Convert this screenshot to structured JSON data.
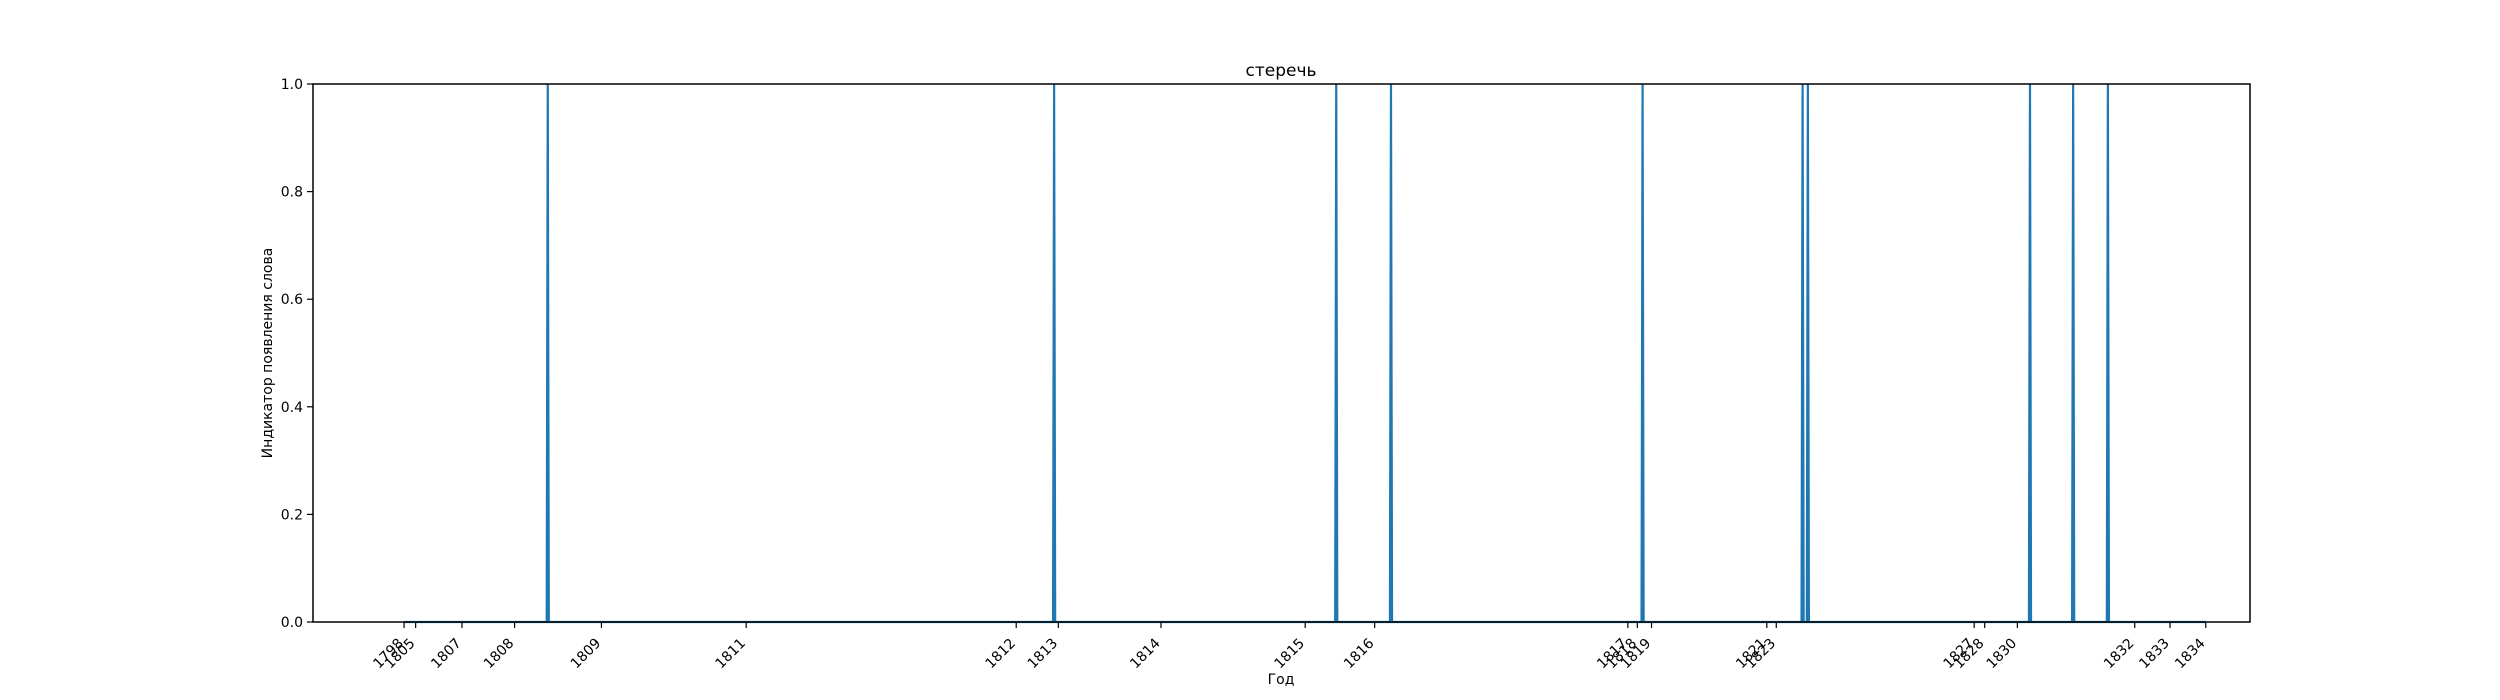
{
  "chart_data": {
    "type": "line",
    "title": "стеречь",
    "xlabel": "Год",
    "ylabel": "Индикатор появления слова",
    "xlim": [
      1798.6,
      1835.4
    ],
    "ylim": [
      0.0,
      1.0
    ],
    "x_ticks": [
      {
        "value": 1800.33,
        "label": "1798"
      },
      {
        "value": 1800.55,
        "label": "1805"
      },
      {
        "value": 1801.43,
        "label": "1807"
      },
      {
        "value": 1802.43,
        "label": "1808"
      },
      {
        "value": 1804.08,
        "label": "1809"
      },
      {
        "value": 1806.83,
        "label": "1811"
      },
      {
        "value": 1811.96,
        "label": "1812"
      },
      {
        "value": 1812.76,
        "label": "1813"
      },
      {
        "value": 1814.71,
        "label": "1814"
      },
      {
        "value": 1817.45,
        "label": "1815"
      },
      {
        "value": 1818.77,
        "label": "1816"
      },
      {
        "value": 1823.58,
        "label": "1817"
      },
      {
        "value": 1823.76,
        "label": "1818"
      },
      {
        "value": 1824.03,
        "label": "1819"
      },
      {
        "value": 1826.22,
        "label": "1821"
      },
      {
        "value": 1826.4,
        "label": "1823"
      },
      {
        "value": 1830.16,
        "label": "1827"
      },
      {
        "value": 1830.36,
        "label": "1828"
      },
      {
        "value": 1830.98,
        "label": "1830"
      },
      {
        "value": 1833.21,
        "label": "1832"
      },
      {
        "value": 1833.88,
        "label": "1833"
      },
      {
        "value": 1834.56,
        "label": "1834"
      }
    ],
    "y_ticks": [
      0.0,
      0.2,
      0.4,
      0.6,
      0.8,
      1.0
    ],
    "y_tick_labels": [
      "0.0",
      "0.2",
      "0.4",
      "0.6",
      "0.8",
      "1.0"
    ],
    "series": [
      {
        "color": "#1f77b4",
        "x": [
          1800.33,
          1803.04,
          1803.06,
          1803.08,
          1812.66,
          1812.68,
          1812.7,
          1818.02,
          1818.04,
          1818.06,
          1819.06,
          1819.08,
          1819.1,
          1823.84,
          1823.86,
          1823.88,
          1826.88,
          1826.9,
          1826.92,
          1826.98,
          1827.0,
          1827.02,
          1831.2,
          1831.22,
          1831.24,
          1832.02,
          1832.04,
          1832.06,
          1832.68,
          1832.7,
          1832.72,
          1834.56
        ],
        "y": [
          0,
          0,
          1,
          0,
          0,
          1,
          0,
          0,
          1,
          0,
          0,
          1,
          0,
          0,
          1,
          0,
          0,
          1,
          0,
          0,
          1,
          0,
          0,
          1,
          0,
          0,
          1,
          0,
          0,
          1,
          0,
          0
        ]
      }
    ],
    "grid": false,
    "colors": {
      "axes": "#000000",
      "line": "#1f77b4",
      "background": "#ffffff"
    }
  }
}
